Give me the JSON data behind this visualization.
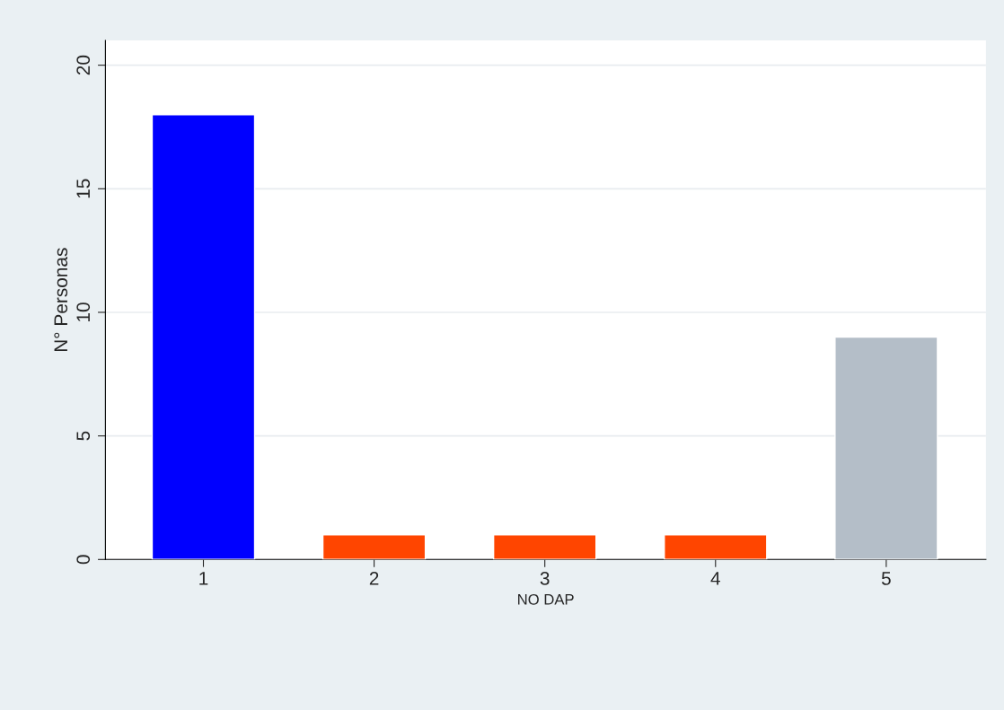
{
  "chart_data": {
    "type": "bar",
    "xlabel": "NO DAP",
    "ylabel": "N° Personas",
    "categories": [
      "1",
      "2",
      "3",
      "4",
      "5"
    ],
    "values": [
      18,
      1,
      1,
      1,
      9
    ],
    "colors": [
      "#0000ff",
      "#ff4500",
      "#ff4500",
      "#ff4500",
      "#b4bec8"
    ],
    "ylim": [
      0,
      21
    ],
    "yticks": [
      0,
      5,
      10,
      15,
      20
    ],
    "grid": "y",
    "legend": false
  }
}
